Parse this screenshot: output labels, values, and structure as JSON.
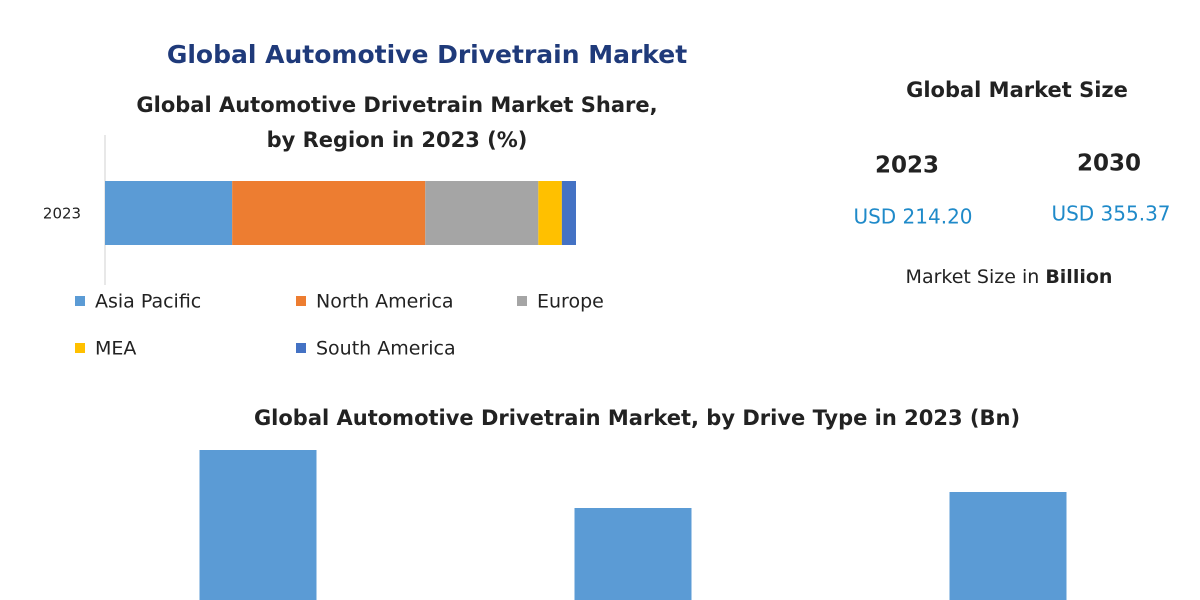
{
  "title": "Global Automotive Drivetrain Market",
  "chart_data": [
    {
      "type": "bar",
      "orientation": "horizontal",
      "stacked": true,
      "title": [
        "Global Automotive Drivetrain Market Share,",
        "by Region in 2023 (%)"
      ],
      "categories": [
        "2023"
      ],
      "xlim": [
        0,
        100
      ],
      "series": [
        {
          "name": "Asia Pacific",
          "color": "#5b9bd5",
          "values": [
            27
          ]
        },
        {
          "name": "North America",
          "color": "#ed7d31",
          "values": [
            41
          ]
        },
        {
          "name": "Europe",
          "color": "#a5a5a5",
          "values": [
            24
          ]
        },
        {
          "name": "MEA",
          "color": "#ffc000",
          "values": [
            5
          ]
        },
        {
          "name": "South America",
          "color": "#4472c4",
          "values": [
            3
          ]
        }
      ]
    },
    {
      "type": "bar",
      "orientation": "vertical",
      "title": [
        "Global Automotive Drivetrain Market, by Drive Type  in 2023 (Bn)"
      ],
      "categories": [
        null,
        null,
        null
      ],
      "values": [
        150,
        92,
        108
      ],
      "color": "#5b9bd5",
      "ylim": [
        0,
        160
      ]
    }
  ],
  "market_size": {
    "title": "Global Market Size",
    "years": [
      "2023",
      "2030"
    ],
    "values": [
      "USD 214.20",
      "USD 355.37"
    ],
    "note": "Market Size in",
    "note_unit": "Billion"
  }
}
